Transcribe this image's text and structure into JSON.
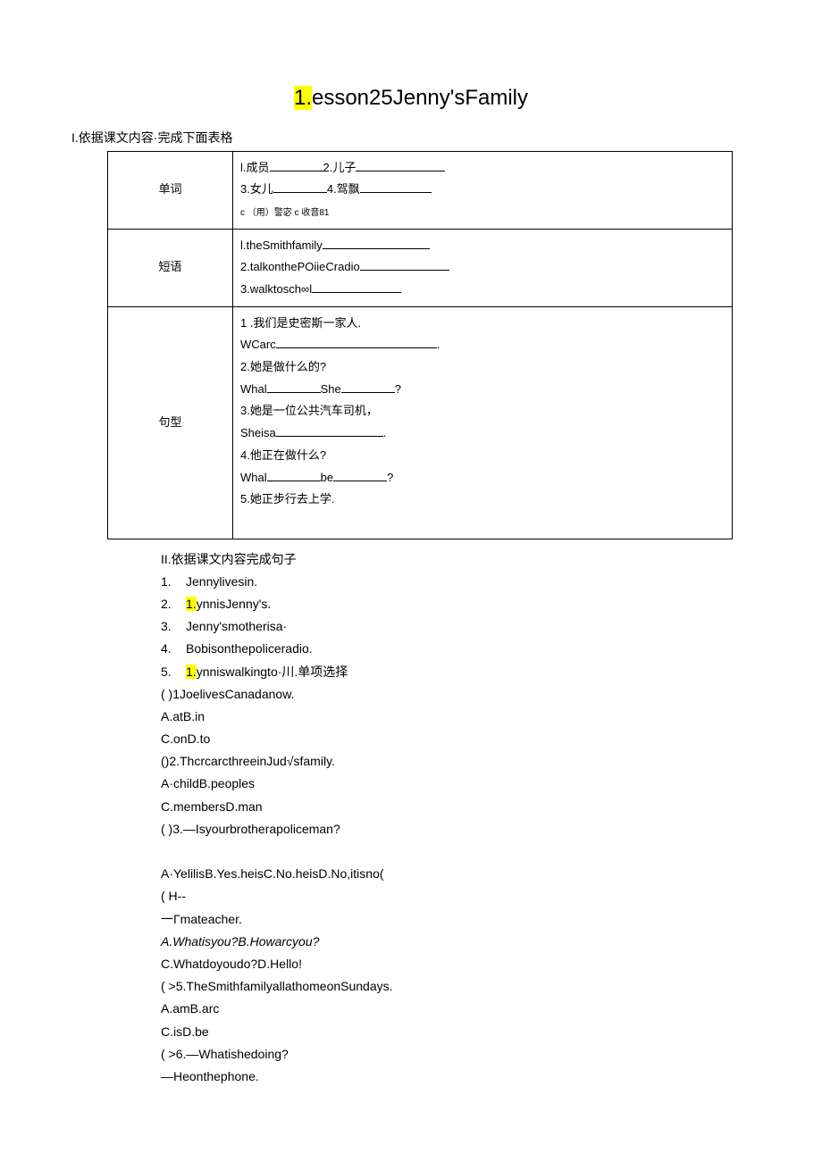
{
  "title": {
    "highlight": "1.",
    "rest": "esson25Jenny'sFamily"
  },
  "section1": {
    "heading": "I.依据课文内容·完成下面表格",
    "rows": {
      "r1": {
        "label": "单词",
        "line1a": "l.成员",
        "line1b": "2.儿子",
        "line2a": "3.女儿",
        "line2b": "4.驾飘",
        "line3": "c （用）警宓   c 收音81"
      },
      "r2": {
        "label": "短语",
        "line1": "l.theSmithfamily",
        "line2": "2.talkonthePOiieCradio",
        "line3": "3.walktosch∞l"
      },
      "r3": {
        "label": "句型",
        "q1": "1          .我们是史密斯一家人.",
        "q1b": "WCarc",
        "q2": "2.她是做什么的?",
        "q2b_a": "Whal",
        "q2b_b": "She",
        "q2b_c": "?",
        "q3": "3.她是一位公共汽车司机，",
        "q3b": "Sheisa",
        "q4": "4.他正在做什么?",
        "q4b_a": "Whal",
        "q4b_b": "be",
        "q4b_c": "?",
        "q5": "5.她正步行去上学."
      }
    }
  },
  "section2": {
    "heading": "II.依据课文内容完成句子",
    "items": {
      "i1": {
        "num": "1.",
        "text": "Jennylivesin."
      },
      "i2": {
        "num": "2.",
        "hl": "1.",
        "text": "ynnisJenny's."
      },
      "i3": {
        "num": "3.",
        "text": "Jenny'smotherisa·"
      },
      "i4": {
        "num": "4.",
        "text": "Bobisonthepoliceradio."
      },
      "i5": {
        "num": "5.",
        "hl": "1.",
        "text": "ynniswalkingto·川.单项选择"
      }
    },
    "mc": {
      "l1": "(        )1JoelivesCanadanow.",
      "l2": "A.atB.in",
      "l3": "C.onD.to",
      "l4": "()2.ThcrcarcthreeinJud√sfamily.",
      "l5": "A·childB.peoples",
      "l6": "C.membersD.man",
      "l7": "(        )3.—Isyourbrotherapoliceman?",
      "l8": "A·YelilisB.Yes.heisC.No.heisD.No,itisno(",
      "l9": "(          H--",
      "l10": "一Гmateacher.",
      "l11": "A.Whatisyou?B.Howarcyou?",
      "l12": "C.Whatdoyoudo?D.Hello!",
      "l13": "(        >5.TheSmithfamilyallathomeonSundays.",
      "l14": "A.amB.arc",
      "l15": "C.isD.be",
      "l16": "(          >6.—Whatishedoing?",
      "l17": "—Heonthephone."
    }
  }
}
